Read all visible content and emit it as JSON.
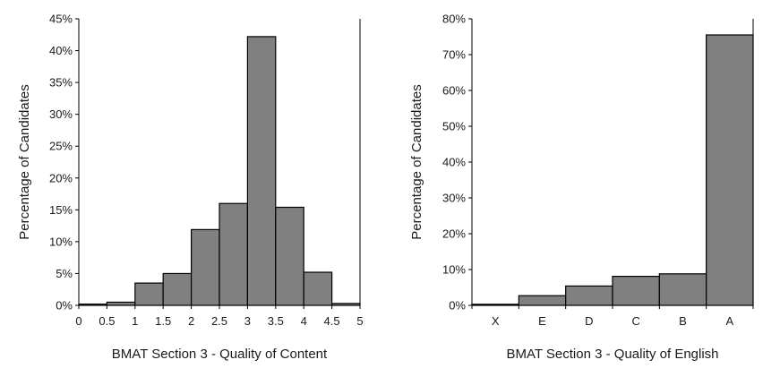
{
  "chart_data": [
    {
      "type": "bar",
      "title": "",
      "xlabel": "BMAT Section 3 - Quality of Content",
      "ylabel": "Percentage of Candidates",
      "categories": [
        "0",
        "0.5",
        "1",
        "1.5",
        "2",
        "2.5",
        "3",
        "3.5",
        "4",
        "4.5",
        "5"
      ],
      "values": [
        0.2,
        0.5,
        3.5,
        5.0,
        11.9,
        16.0,
        42.2,
        15.4,
        5.2,
        0.3,
        0.1
      ],
      "ylim": [
        0,
        45
      ],
      "yticks": [
        "0%",
        "5%",
        "10%",
        "15%",
        "20%",
        "25%",
        "30%",
        "35%",
        "40%",
        "45%"
      ],
      "grid": false,
      "bar_color": "#808080"
    },
    {
      "type": "bar",
      "title": "",
      "xlabel": "BMAT Section 3 - Quality of English",
      "ylabel": "Percentage of Candidates",
      "categories": [
        "X",
        "E",
        "D",
        "C",
        "B",
        "A"
      ],
      "values": [
        0.3,
        2.7,
        5.4,
        8.1,
        8.8,
        75.5
      ],
      "ylim": [
        0,
        80
      ],
      "yticks": [
        "0%",
        "10%",
        "20%",
        "30%",
        "40%",
        "50%",
        "60%",
        "70%",
        "80%"
      ],
      "grid": false,
      "bar_color": "#808080"
    }
  ]
}
